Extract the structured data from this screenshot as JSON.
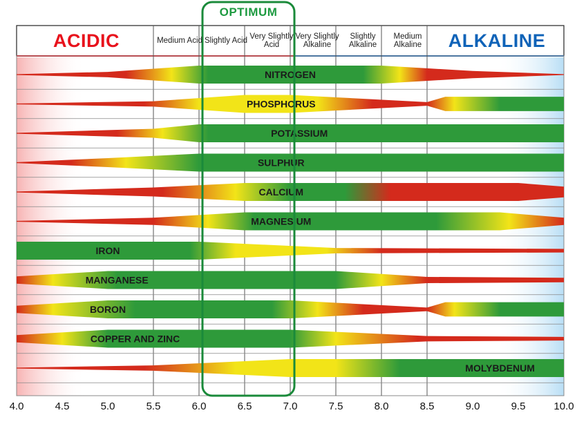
{
  "optimum_label": "OPTIMUM",
  "header": {
    "acidic": "ACIDIC",
    "alkaline": "ALKALINE",
    "columns": [
      "Medium Acid",
      "Slightly Acid",
      "Very Slightly Acid",
      "Very Slightly Alkaline",
      "Slightly Alkaline",
      "Medium Alkaline"
    ]
  },
  "colors": {
    "acidic": "#e8121c",
    "alkaline": "#0f63b8",
    "optimum": "#1a8a3a",
    "high": "#2e9a3a",
    "medium": "#f2e418",
    "low": "#d42a1c"
  },
  "x_axis": {
    "ticks": [
      "4.0",
      "4.5",
      "5.0",
      "5.5",
      "6.0",
      "6.5",
      "7.0",
      "7.5",
      "8.0",
      "8.5",
      "9.0",
      "9.5",
      "10.0"
    ]
  },
  "chart_data": {
    "type": "band",
    "x_range": [
      4.0,
      10.0
    ],
    "optimum_range": [
      6.0,
      7.0
    ],
    "nutrients": [
      {
        "name": "NITROGEN",
        "availability": [
          [
            4,
            0.05
          ],
          [
            5,
            0.3
          ],
          [
            6,
            1
          ],
          [
            8,
            1
          ],
          [
            9,
            0.4
          ],
          [
            10,
            0.05
          ]
        ],
        "colors": [
          [
            4,
            "low"
          ],
          [
            5.2,
            "low"
          ],
          [
            5.7,
            "medium"
          ],
          [
            6.1,
            "high"
          ],
          [
            7.8,
            "high"
          ],
          [
            8.2,
            "medium"
          ],
          [
            8.5,
            "low"
          ],
          [
            10,
            "low"
          ]
        ]
      },
      {
        "name": "PHOSPHORUS",
        "availability": [
          [
            4,
            0.05
          ],
          [
            5.5,
            0.3
          ],
          [
            6.5,
            1
          ],
          [
            7,
            1
          ],
          [
            8.5,
            0.2
          ],
          [
            8.7,
            0.8
          ],
          [
            10,
            0.8
          ]
        ],
        "colors": [
          [
            4,
            "low"
          ],
          [
            5.4,
            "low"
          ],
          [
            6,
            "medium"
          ],
          [
            7.3,
            "medium"
          ],
          [
            7.9,
            "low"
          ],
          [
            8.5,
            "low"
          ],
          [
            8.8,
            "medium"
          ],
          [
            9.3,
            "high"
          ],
          [
            10,
            "high"
          ]
        ]
      },
      {
        "name": "POTASSIUM",
        "availability": [
          [
            4,
            0.05
          ],
          [
            5.5,
            0.5
          ],
          [
            6,
            1
          ],
          [
            10,
            1
          ]
        ],
        "colors": [
          [
            4,
            "low"
          ],
          [
            5.1,
            "low"
          ],
          [
            5.6,
            "medium"
          ],
          [
            6.1,
            "high"
          ],
          [
            10,
            "high"
          ]
        ]
      },
      {
        "name": "SULPHUR",
        "availability": [
          [
            4,
            0.05
          ],
          [
            5,
            0.5
          ],
          [
            6,
            1
          ],
          [
            10,
            1
          ]
        ],
        "colors": [
          [
            4,
            "low"
          ],
          [
            4.6,
            "low"
          ],
          [
            5.2,
            "medium"
          ],
          [
            6,
            "high"
          ],
          [
            10,
            "high"
          ]
        ]
      },
      {
        "name": "CALCIUM",
        "availability": [
          [
            4,
            0.05
          ],
          [
            5.5,
            0.5
          ],
          [
            6.5,
            1
          ],
          [
            9.5,
            1
          ],
          [
            10,
            0.6
          ]
        ],
        "colors": [
          [
            4,
            "low"
          ],
          [
            5.6,
            "low"
          ],
          [
            6.4,
            "medium"
          ],
          [
            7,
            "high"
          ],
          [
            7.6,
            "high"
          ],
          [
            8.1,
            "low"
          ],
          [
            10,
            "low"
          ]
        ]
      },
      {
        "name": "MAGNESIUM",
        "availability": [
          [
            4,
            0.05
          ],
          [
            5.5,
            0.4
          ],
          [
            6.5,
            1
          ],
          [
            9.3,
            1
          ],
          [
            10,
            0.4
          ]
        ],
        "colors": [
          [
            4,
            "low"
          ],
          [
            5.5,
            "low"
          ],
          [
            6.1,
            "medium"
          ],
          [
            6.6,
            "high"
          ],
          [
            8.6,
            "high"
          ],
          [
            9.4,
            "medium"
          ],
          [
            10,
            "low"
          ]
        ]
      },
      {
        "name": "IRON",
        "availability": [
          [
            4,
            1
          ],
          [
            6,
            1
          ],
          [
            7.5,
            0.3
          ],
          [
            10,
            0.2
          ]
        ],
        "colors": [
          [
            4,
            "high"
          ],
          [
            5.9,
            "high"
          ],
          [
            6.4,
            "medium"
          ],
          [
            7.4,
            "medium"
          ],
          [
            8,
            "low"
          ],
          [
            10,
            "low"
          ]
        ]
      },
      {
        "name": "MANGANESE",
        "availability": [
          [
            4,
            0.4
          ],
          [
            5,
            1
          ],
          [
            7.5,
            1
          ],
          [
            8.5,
            0.35
          ],
          [
            10,
            0.25
          ]
        ],
        "colors": [
          [
            4,
            "low"
          ],
          [
            4.4,
            "medium"
          ],
          [
            5.1,
            "high"
          ],
          [
            7.5,
            "high"
          ],
          [
            8,
            "medium"
          ],
          [
            8.5,
            "low"
          ],
          [
            10,
            "low"
          ]
        ]
      },
      {
        "name": "BORON",
        "availability": [
          [
            4,
            0.4
          ],
          [
            5,
            1
          ],
          [
            7,
            1
          ],
          [
            8.5,
            0.2
          ],
          [
            8.7,
            0.8
          ],
          [
            10,
            0.8
          ]
        ],
        "colors": [
          [
            4,
            "low"
          ],
          [
            4.4,
            "medium"
          ],
          [
            5.3,
            "high"
          ],
          [
            6.8,
            "high"
          ],
          [
            7.3,
            "medium"
          ],
          [
            7.8,
            "low"
          ],
          [
            8.5,
            "low"
          ],
          [
            8.8,
            "medium"
          ],
          [
            9.3,
            "high"
          ],
          [
            10,
            "high"
          ]
        ]
      },
      {
        "name": "COPPER AND ZINC",
        "availability": [
          [
            4,
            0.4
          ],
          [
            5,
            1
          ],
          [
            7,
            1
          ],
          [
            8.5,
            0.3
          ],
          [
            10,
            0.2
          ]
        ],
        "colors": [
          [
            4,
            "low"
          ],
          [
            4.5,
            "medium"
          ],
          [
            5,
            "high"
          ],
          [
            7,
            "high"
          ],
          [
            7.5,
            "medium"
          ],
          [
            8.4,
            "low"
          ],
          [
            10,
            "low"
          ]
        ]
      },
      {
        "name": "MOLYBDENUM",
        "availability": [
          [
            4,
            0.05
          ],
          [
            5.5,
            0.3
          ],
          [
            7,
            1
          ],
          [
            10,
            1
          ]
        ],
        "colors": [
          [
            4,
            "low"
          ],
          [
            5.4,
            "low"
          ],
          [
            6.4,
            "medium"
          ],
          [
            7.5,
            "medium"
          ],
          [
            8.2,
            "high"
          ],
          [
            10,
            "high"
          ]
        ]
      }
    ]
  }
}
